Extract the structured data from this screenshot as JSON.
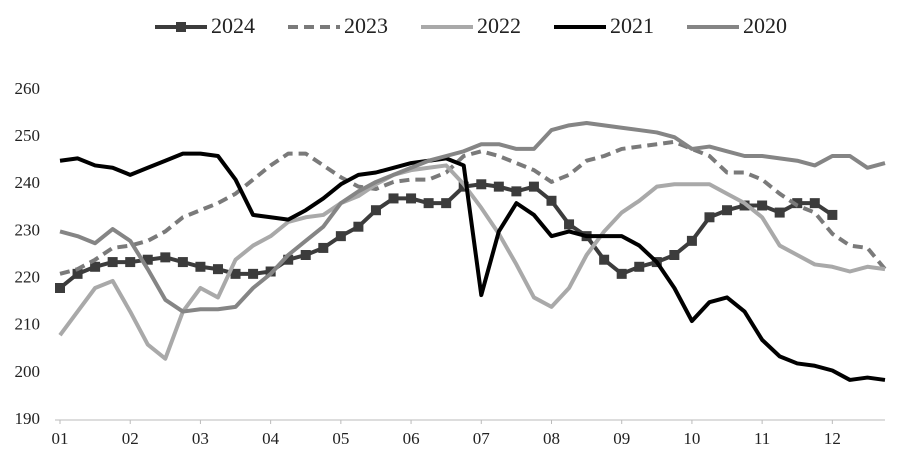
{
  "chart_data": {
    "type": "line",
    "x": [
      1,
      1.25,
      1.5,
      1.75,
      2,
      2.25,
      2.5,
      2.75,
      3,
      3.25,
      3.5,
      3.75,
      4,
      4.25,
      4.5,
      4.75,
      5,
      5.25,
      5.5,
      5.75,
      6,
      6.25,
      6.5,
      6.75,
      7,
      7.25,
      7.5,
      7.75,
      8,
      8.25,
      8.5,
      8.75,
      9,
      9.25,
      9.5,
      9.75,
      10,
      10.25,
      10.5,
      10.75,
      11,
      11.25,
      11.5,
      11.75,
      12,
      12.25,
      12.5,
      12.75
    ],
    "xlim": [
      1,
      12.75
    ],
    "xticks": [
      {
        "value": 1,
        "label": "01"
      },
      {
        "value": 2,
        "label": "02"
      },
      {
        "value": 3,
        "label": "03"
      },
      {
        "value": 4,
        "label": "04"
      },
      {
        "value": 5,
        "label": "05"
      },
      {
        "value": 6,
        "label": "06"
      },
      {
        "value": 7,
        "label": "07"
      },
      {
        "value": 8,
        "label": "08"
      },
      {
        "value": 9,
        "label": "09"
      },
      {
        "value": 10,
        "label": "10"
      },
      {
        "value": 11,
        "label": "11"
      },
      {
        "value": 12,
        "label": "12"
      }
    ],
    "ylim": [
      190,
      260
    ],
    "yticks": [
      190,
      200,
      210,
      220,
      230,
      240,
      250,
      260
    ],
    "grid": false,
    "legend": "top",
    "series": [
      {
        "name": "2024",
        "color": "#3c3c3c",
        "marker": "square",
        "dash": false,
        "values": [
          218,
          221,
          222.5,
          223.5,
          223.5,
          224,
          224.5,
          223.5,
          222.5,
          222,
          221,
          221,
          221.5,
          224,
          225,
          226.5,
          229,
          231,
          234.5,
          237,
          237,
          236,
          236,
          239.5,
          240,
          239.5,
          238.5,
          239.5,
          236.5,
          231.5,
          229,
          224,
          221,
          222.5,
          223.5,
          225,
          228,
          233,
          234.5,
          235.5,
          235.5,
          234,
          236,
          236,
          233.5,
          null,
          null,
          null
        ]
      },
      {
        "name": "2023",
        "color": "#7a7a7a",
        "marker": "none",
        "dash": true,
        "values": [
          221,
          222,
          224,
          226.5,
          227,
          228,
          230,
          233,
          234.5,
          236,
          238,
          241,
          244,
          246.5,
          246.5,
          244,
          241.5,
          239.5,
          239,
          240.5,
          241,
          241,
          242.5,
          246,
          247,
          246,
          244.5,
          243,
          240.5,
          242,
          245,
          246,
          247.5,
          248,
          248.5,
          249,
          247.5,
          246,
          242.5,
          242.5,
          241,
          238,
          235.5,
          234,
          229.5,
          227,
          226.5,
          222
        ]
      },
      {
        "name": "2022",
        "color": "#a9a9a9",
        "marker": "none",
        "dash": false,
        "values": [
          208,
          213,
          218,
          219.5,
          213,
          206,
          203,
          213,
          218,
          216,
          224,
          227,
          229,
          232,
          233,
          233.5,
          236,
          237.5,
          240,
          242,
          243,
          243.5,
          244,
          240,
          235,
          229.5,
          223,
          216,
          214,
          218,
          225,
          230,
          234,
          236.5,
          239.5,
          240,
          240,
          240,
          238,
          236,
          233,
          227,
          225,
          223,
          222.5,
          221.5,
          222.5,
          222
        ]
      },
      {
        "name": "2021",
        "color": "#000000",
        "marker": "none",
        "dash": false,
        "values": [
          245,
          245.5,
          244,
          243.5,
          242,
          243.5,
          245,
          246.5,
          246.5,
          246,
          241,
          233.5,
          233,
          232.5,
          234.5,
          237,
          240,
          242,
          242.5,
          243.5,
          244.5,
          245,
          245.5,
          244,
          216.5,
          230,
          236,
          233.5,
          229,
          230,
          229,
          229,
          229,
          227,
          223.5,
          218,
          211,
          215,
          216,
          213,
          207,
          203.5,
          202,
          201.5,
          200.5,
          198.5,
          199,
          198.5
        ]
      },
      {
        "name": "2020",
        "color": "#858585",
        "marker": "none",
        "dash": false,
        "values": [
          230,
          229,
          227.5,
          230.5,
          228,
          222,
          215.5,
          213,
          213.5,
          213.5,
          214,
          218,
          221,
          225,
          228,
          231,
          236,
          238.5,
          240.5,
          242,
          243.5,
          245,
          246,
          247,
          248.5,
          248.5,
          247.5,
          247.5,
          251.5,
          252.5,
          253,
          252.5,
          252,
          251.5,
          251,
          250,
          247.5,
          248,
          247,
          246,
          246,
          245.5,
          245,
          244,
          246,
          246,
          243.5,
          244.5
        ]
      }
    ]
  }
}
